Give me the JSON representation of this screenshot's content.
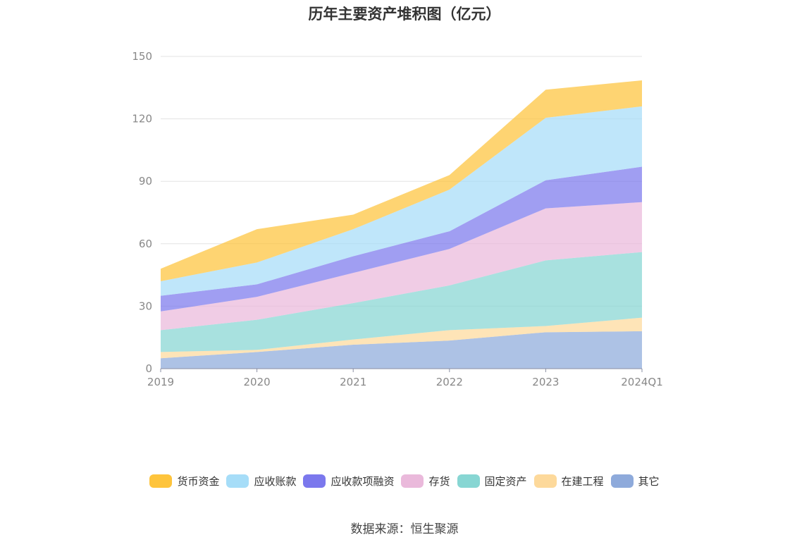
{
  "source": "数据来源：恒生聚源",
  "chart_data": {
    "type": "area",
    "stacked": true,
    "title": "历年主要资产堆积图（亿元）",
    "categories": [
      "2019",
      "2020",
      "2021",
      "2022",
      "2023",
      "2024Q1"
    ],
    "ylim": [
      0,
      150
    ],
    "yticks": [
      0,
      30,
      60,
      90,
      120,
      150
    ],
    "grid": true,
    "legend_position": "bottom",
    "series": [
      {
        "name": "其它",
        "color": "#8eaadb",
        "values": [
          5,
          8,
          11.5,
          13.5,
          17.5,
          18
        ]
      },
      {
        "name": "在建工程",
        "color": "#fdd99b",
        "values": [
          3,
          1,
          2.5,
          5,
          3,
          6.5
        ]
      },
      {
        "name": "固定资产",
        "color": "#87d6d3",
        "values": [
          10.5,
          14.5,
          17.5,
          21.5,
          31.5,
          31.5
        ]
      },
      {
        "name": "存货",
        "color": "#eab9db",
        "values": [
          9,
          11,
          14.5,
          17.5,
          25,
          24
        ]
      },
      {
        "name": "应收款项融资",
        "color": "#7b78ed",
        "values": [
          7.5,
          6,
          8,
          8.5,
          13.5,
          17
        ]
      },
      {
        "name": "应收账款",
        "color": "#a6ddf8",
        "values": [
          7,
          10.5,
          13,
          20,
          30,
          29
        ]
      },
      {
        "name": "货币资金",
        "color": "#fec43c",
        "values": [
          6,
          16,
          7,
          7,
          13.5,
          12.5
        ]
      }
    ],
    "legend_order": [
      "货币资金",
      "应收账款",
      "应收款项融资",
      "存货",
      "固定资产",
      "在建工程",
      "其它"
    ]
  }
}
